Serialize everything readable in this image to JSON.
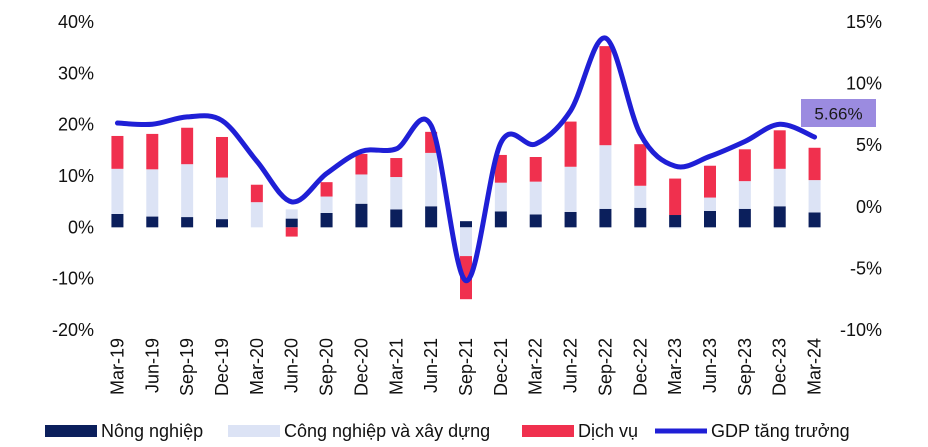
{
  "chart_data": {
    "type": "bar",
    "stacked": true,
    "categories": [
      "Mar-19",
      "Jun-19",
      "Sep-19",
      "Dec-19",
      "Mar-20",
      "Jun-20",
      "Sep-20",
      "Dec-20",
      "Mar-21",
      "Jun-21",
      "Sep-21",
      "Dec-21",
      "Mar-22",
      "Jun-22",
      "Sep-22",
      "Dec-22",
      "Mar-23",
      "Jun-23",
      "Sep-23",
      "Dec-23",
      "Mar-24"
    ],
    "left_axis": {
      "ylim": [
        -20,
        40
      ],
      "ticks": [
        "40%",
        "30%",
        "20%",
        "10%",
        "0%",
        "-10%",
        "-20%"
      ],
      "tick_values": [
        40,
        30,
        20,
        10,
        0,
        -10,
        -20
      ]
    },
    "right_axis": {
      "ylim": [
        -10,
        15
      ],
      "ticks": [
        "15%",
        "10%",
        "5%",
        "0%",
        "-5%",
        "-10%"
      ],
      "tick_values": [
        15,
        10,
        5,
        0,
        -5,
        -10
      ]
    },
    "series": [
      {
        "name": "Nông nghiệp",
        "axis": "left",
        "color": "#0b1f5c",
        "values": [
          2.6,
          2.1,
          2.0,
          1.6,
          0.0,
          1.7,
          2.8,
          4.6,
          3.5,
          4.1,
          1.2,
          3.1,
          2.5,
          3.0,
          3.6,
          3.8,
          2.4,
          3.2,
          3.6,
          4.1,
          2.9
        ]
      },
      {
        "name": "Công nghiệp và xây dựng",
        "axis": "left",
        "color": "#dce3f5",
        "values": [
          8.8,
          9.2,
          10.3,
          8.1,
          4.9,
          1.8,
          3.2,
          5.7,
          6.3,
          10.4,
          -5.6,
          5.6,
          6.4,
          8.8,
          12.4,
          4.3,
          -0.2,
          2.6,
          5.4,
          7.3,
          6.3
        ]
      },
      {
        "name": "Dịch vụ",
        "axis": "left",
        "color": "#f0304e",
        "values": [
          6.4,
          6.9,
          7.1,
          7.9,
          3.4,
          -1.8,
          2.8,
          4.0,
          3.7,
          4.1,
          -8.4,
          5.4,
          4.8,
          8.8,
          19.3,
          8.1,
          7.1,
          6.2,
          6.2,
          7.5,
          6.3
        ]
      },
      {
        "name": "GDP tăng trưởng",
        "type": "line",
        "axis": "right",
        "color": "#1f1fd6",
        "values": [
          6.8,
          6.7,
          7.3,
          7.0,
          3.7,
          0.4,
          2.7,
          4.5,
          4.7,
          6.6,
          -6.0,
          5.2,
          5.1,
          7.8,
          13.7,
          5.9,
          3.3,
          4.1,
          5.3,
          6.7,
          5.66
        ]
      }
    ],
    "callout": {
      "label": "5.66%",
      "series": "GDP tăng trưởng",
      "index": 20,
      "color": "#9b8be0"
    },
    "legend_position": "bottom",
    "grid": false,
    "title": "",
    "xlabel": "",
    "ylabel": ""
  }
}
